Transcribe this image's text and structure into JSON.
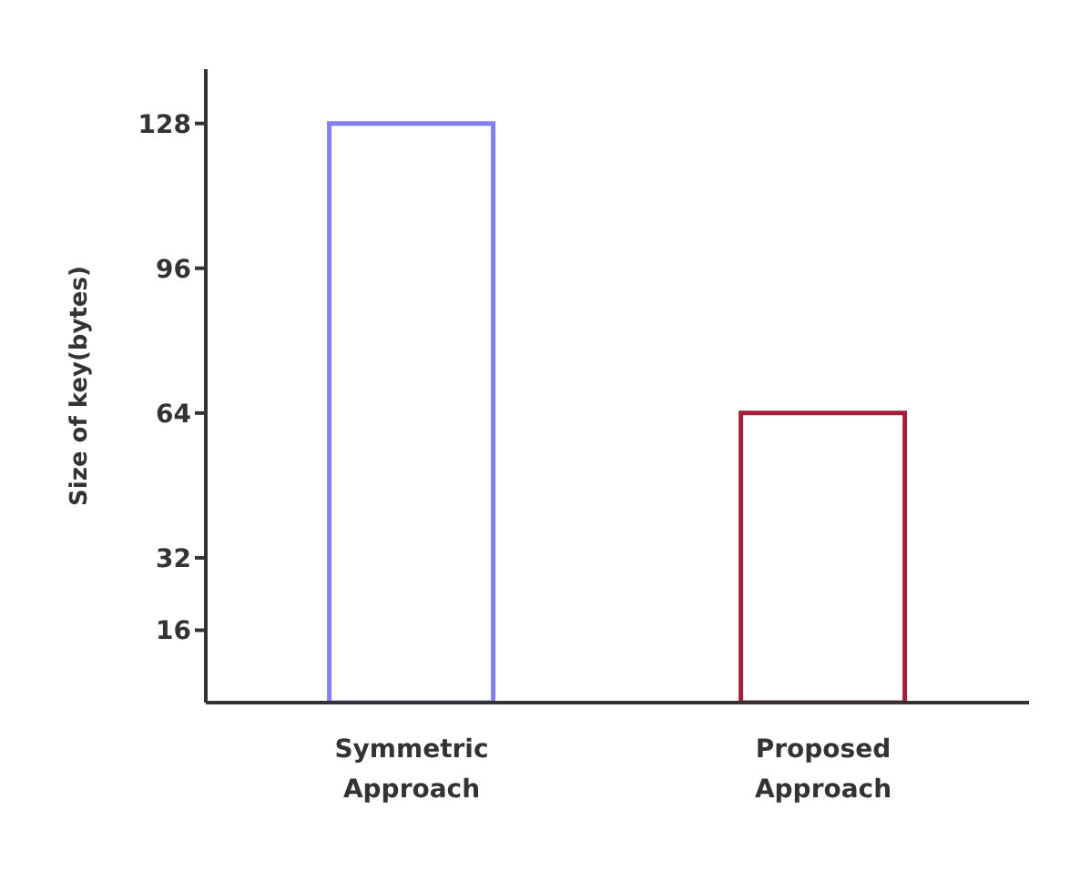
{
  "chart_data": {
    "type": "bar",
    "ylabel": "Size of key(bytes)",
    "categories": [
      "Symmetric Approach",
      "Proposed Approach"
    ],
    "values": [
      128,
      64
    ],
    "colors": [
      "#7f7fef",
      "#a3203c"
    ],
    "ylim": [
      0,
      140
    ],
    "yticks": [
      16,
      32,
      64,
      96,
      128
    ]
  }
}
